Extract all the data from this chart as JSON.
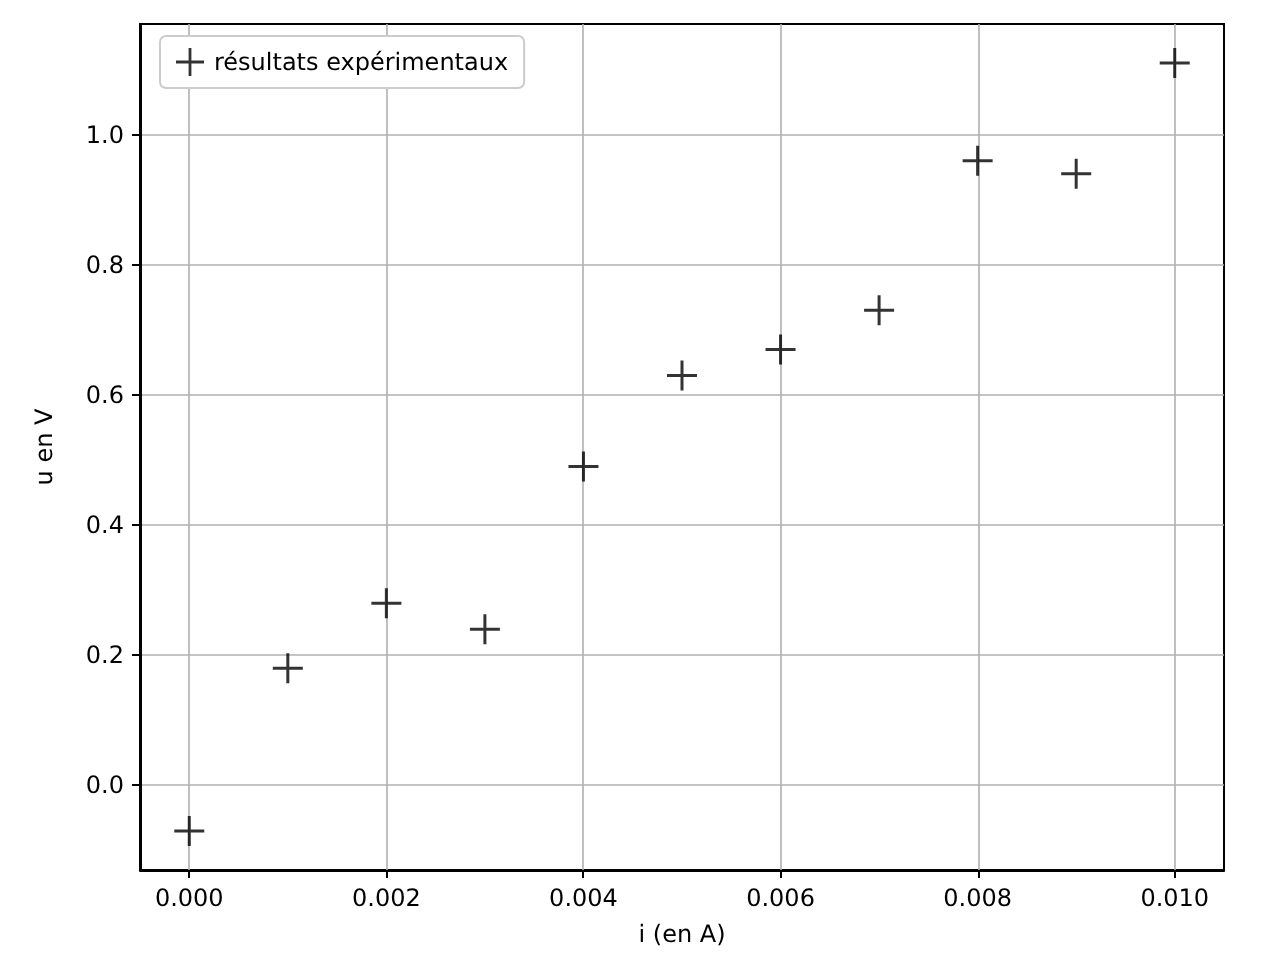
{
  "chart_data": {
    "type": "scatter",
    "xlabel": "i (en A)",
    "ylabel": "u en V",
    "x": [
      0,
      0.001,
      0.002,
      0.003,
      0.004,
      0.005,
      0.006,
      0.007,
      0.008,
      0.009,
      0.01
    ],
    "series": [
      {
        "name": "résultats expérimentaux",
        "color": "#000000",
        "values": [
          -0.07,
          0.18,
          0.28,
          0.24,
          0.49,
          0.63,
          0.67,
          0.73,
          0.96,
          0.94,
          1.11
        ]
      }
    ],
    "xlim": [
      -0.0005,
      0.0105
    ],
    "ylim": [
      -0.13,
      1.17
    ],
    "xticks": [
      {
        "value": 0,
        "label": "0.000"
      },
      {
        "value": 0.002,
        "label": "0.002"
      },
      {
        "value": 0.004,
        "label": "0.004"
      },
      {
        "value": 0.006,
        "label": "0.006"
      },
      {
        "value": 0.008,
        "label": "0.008"
      },
      {
        "value": 0.01,
        "label": "0.010"
      }
    ],
    "yticks": [
      {
        "value": 0,
        "label": "0.0"
      },
      {
        "value": 0.2,
        "label": "0.2"
      },
      {
        "value": 0.4,
        "label": "0.4"
      },
      {
        "value": 0.6,
        "label": "0.6"
      },
      {
        "value": 0.8,
        "label": "0.8"
      },
      {
        "value": 1,
        "label": "1.0"
      }
    ],
    "grid": true,
    "legend": "top left",
    "marker": "cross"
  }
}
